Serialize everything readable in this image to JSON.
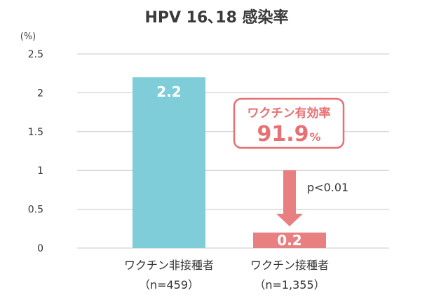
{
  "chart_data": {
    "type": "bar",
    "title": "HPV 16､18 感染率",
    "unit_label": "(%)",
    "ylim": [
      0,
      2.5
    ],
    "yticks": [
      "0",
      "0.5",
      "1",
      "1.5",
      "2",
      "2.5"
    ],
    "yticks_values": [
      0,
      0.5,
      1,
      1.5,
      2,
      2.5
    ],
    "grid": true,
    "categories": [
      "ワクチン非接種者",
      "ワクチン接種者"
    ],
    "sample_sizes": [
      "（n=459）",
      "（n=1,355）"
    ],
    "values": [
      2.2,
      0.2
    ],
    "value_labels": [
      "2.2",
      "0.2"
    ],
    "annotation": {
      "title": "ワクチン有効率",
      "value": "91.9",
      "unit": "%",
      "p_value": "p<0.01"
    }
  },
  "colors": {
    "bar_unvaccinated": "#7ecdd9",
    "bar_vaccinated": "#e87f80",
    "callout": "#e86f72",
    "arrow": "#e87f80",
    "grid": "#c8c8c8"
  }
}
